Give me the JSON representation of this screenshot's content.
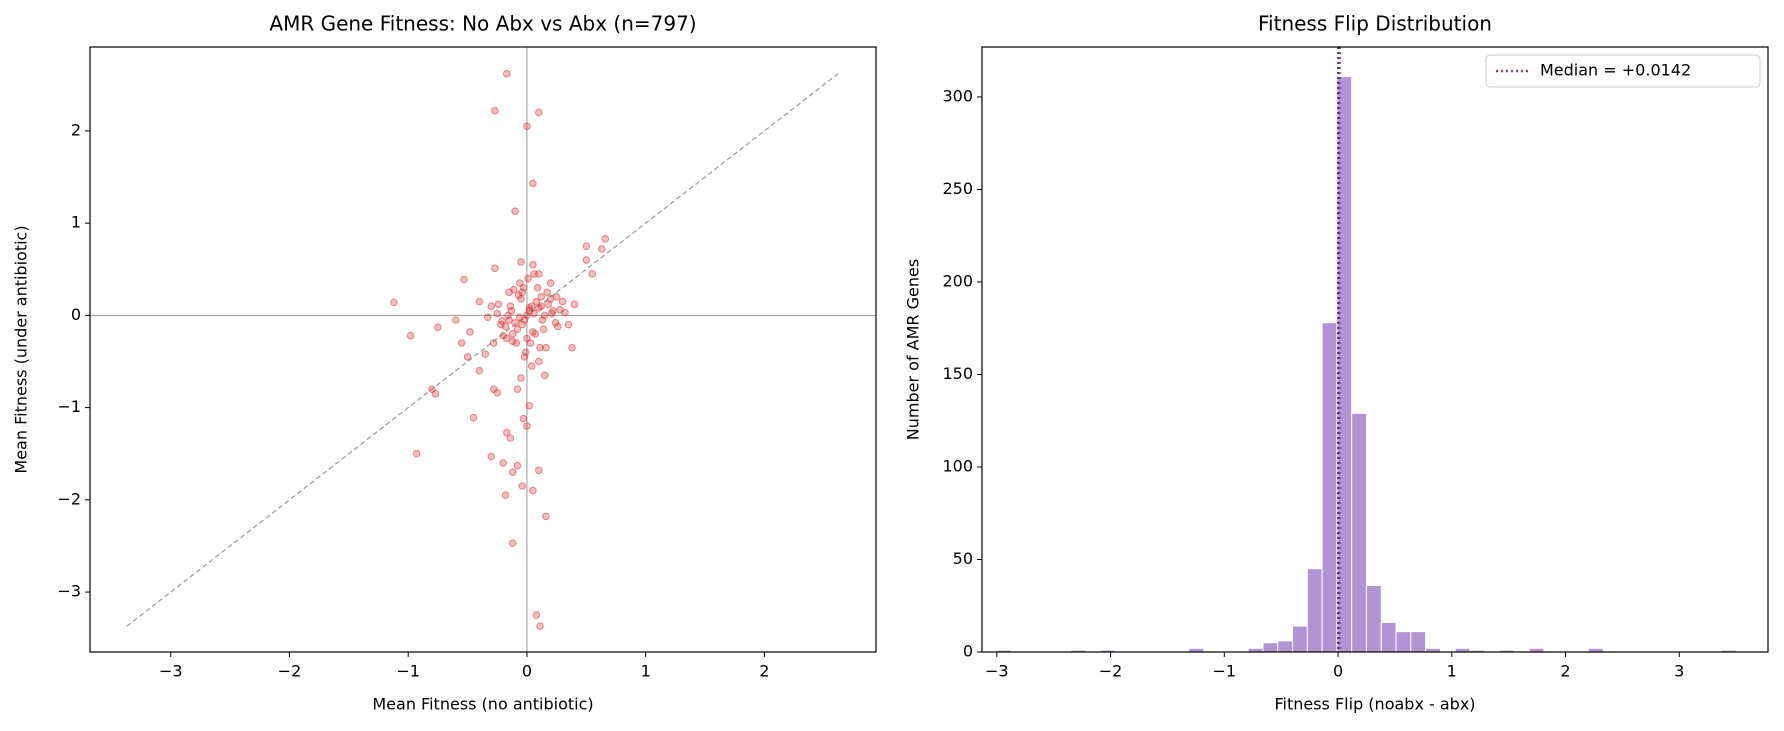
{
  "chart_data": [
    {
      "type": "scatter",
      "title": "AMR Gene Fitness: No Abx vs Abx (n=797)",
      "x_label": "Mean Fitness (no antibiotic)",
      "y_label": "Mean Fitness (under antibiotic)",
      "color": "#d62728",
      "zero_lines": true,
      "identity_line": [
        -3.37,
        2.62
      ],
      "xlim": [
        -3.68,
        2.94
      ],
      "ylim": [
        -3.65,
        2.91
      ],
      "xticks": [
        {
          "value": -3,
          "label": "−3"
        },
        {
          "value": -2,
          "label": "−2"
        },
        {
          "value": -1,
          "label": "−1"
        },
        0,
        1,
        2
      ],
      "yticks": [
        {
          "value": -3,
          "label": "−3"
        },
        {
          "value": -2,
          "label": "−2"
        },
        {
          "value": -1,
          "label": "−1"
        },
        0,
        1,
        2
      ],
      "x": [
        -0.17,
        -0.27,
        0.1,
        0.0,
        0.05,
        -0.1,
        -1.12,
        -0.98,
        -0.93,
        -0.75,
        -0.8,
        -0.77,
        -0.53,
        -0.45,
        -0.27,
        -0.3,
        -0.17,
        -0.14,
        -0.2,
        -0.18,
        -0.12,
        -0.08,
        -0.04,
        -0.12,
        0.1,
        0.05,
        0.16,
        0.08,
        0.11,
        0.0,
        -0.03,
        0.02,
        0.5,
        0.5,
        0.63,
        0.66,
        0.55,
        0.38,
        0.32,
        0.4,
        -0.55,
        -0.5,
        -0.48,
        -0.6,
        -0.4,
        -0.35,
        -0.28,
        -0.25,
        -0.08,
        -0.05,
        0.1,
        0.15,
        0.05,
        -0.05,
        0.1,
        0.2,
        -0.15,
        -0.3,
        -0.4,
        0.0,
        0.02,
        -0.02,
        0.04,
        -0.04,
        0.06,
        -0.06,
        0.08,
        -0.08,
        0.1,
        -0.1,
        0.12,
        -0.12,
        0.15,
        -0.15,
        0.18,
        -0.18,
        0.22,
        -0.22,
        0.25,
        -0.25,
        0.0,
        0.03,
        -0.03,
        0.07,
        -0.07,
        0.11,
        -0.11,
        0.14,
        -0.14,
        0.2,
        -0.2,
        0.28,
        -0.28,
        0.01,
        -0.01,
        0.05,
        -0.05,
        0.09,
        -0.09,
        0.13,
        -0.13,
        0.17,
        -0.17,
        0.24,
        -0.24,
        0.3,
        0.35,
        -0.33,
        0.02,
        -0.02,
        0.06,
        -0.06,
        0.16,
        -0.16,
        0.26,
        0.04,
        -0.04,
        0.12,
        -0.12,
        0.21,
        -0.21
      ],
      "y": [
        2.62,
        2.22,
        2.2,
        2.05,
        1.43,
        1.13,
        0.14,
        -0.22,
        -1.5,
        -0.13,
        -0.8,
        -0.85,
        0.39,
        -1.11,
        0.51,
        -1.53,
        -1.27,
        -1.33,
        -1.6,
        -1.95,
        -1.7,
        -1.63,
        -1.85,
        -2.47,
        -1.68,
        -1.9,
        -2.18,
        -3.25,
        -3.37,
        -1.2,
        -1.12,
        -0.98,
        0.75,
        0.6,
        0.72,
        0.83,
        0.45,
        -0.35,
        0.03,
        0.12,
        -0.3,
        -0.45,
        -0.18,
        -0.05,
        -0.6,
        -0.42,
        -0.8,
        -0.84,
        -0.8,
        -0.68,
        -0.5,
        -0.65,
        0.55,
        0.58,
        0.45,
        0.35,
        0.25,
        0.1,
        0.15,
        0.0,
        0.05,
        -0.05,
        0.1,
        -0.1,
        0.02,
        -0.02,
        0.15,
        -0.15,
        0.08,
        -0.08,
        0.2,
        -0.2,
        0.0,
        -0.05,
        0.12,
        -0.12,
        0.05,
        -0.1,
        0.2,
        0.02,
        -0.25,
        -0.3,
        0.3,
        -0.2,
        0.22,
        -0.35,
        0.28,
        -0.15,
        0.1,
        0.18,
        -0.22,
        0.06,
        -0.3,
        0.4,
        -0.4,
        -0.18,
        0.18,
        0.3,
        -0.3,
        -0.05,
        0.05,
        0.25,
        -0.25,
        -0.08,
        0.12,
        0.15,
        -0.1,
        -0.02,
        0.08,
        -0.45,
        0.45,
        0.35,
        -0.35,
        0.0,
        -0.12,
        -0.55,
        0.25,
        0.1,
        -0.28,
        0.02,
        -0.06
      ]
    },
    {
      "type": "histogram",
      "title": "Fitness Flip Distribution",
      "x_label": "Fitness Flip (noabx - abx)",
      "y_label": "Number of AMR Genes",
      "color": "#b294d4",
      "legend": "upper right",
      "reference_line": 0,
      "median": {
        "value": 0.0142,
        "label": "Median = +0.0142",
        "color": "#8e44ad"
      },
      "xlim": [
        -3.13,
        3.78
      ],
      "ylim": [
        0,
        327
      ],
      "xticks": [
        {
          "value": -3,
          "label": "−3"
        },
        {
          "value": -2,
          "label": "−2"
        },
        {
          "value": -1,
          "label": "−1"
        },
        0,
        1,
        2,
        3
      ],
      "yticks": [
        0,
        50,
        100,
        150,
        200,
        250,
        300
      ],
      "bins": [
        -3.0,
        -2.87,
        -2.74,
        -2.61,
        -2.48,
        -2.35,
        -2.22,
        -2.09,
        -1.96,
        -1.83,
        -1.7,
        -1.57,
        -1.44,
        -1.31,
        -1.18,
        -1.05,
        -0.92,
        -0.79,
        -0.66,
        -0.53,
        -0.4,
        -0.27,
        -0.14,
        -0.01,
        0.12,
        0.25,
        0.38,
        0.51,
        0.64,
        0.77,
        0.9,
        1.03,
        1.16,
        1.29,
        1.42,
        1.55,
        1.68,
        1.81,
        1.94,
        2.07,
        2.2,
        2.33,
        2.46,
        2.59,
        2.72,
        2.85,
        2.98,
        3.11,
        3.24,
        3.37,
        3.5
      ],
      "counts": [
        1,
        0,
        0,
        0,
        0,
        1,
        0,
        1,
        0,
        0,
        0,
        0,
        0,
        2,
        0,
        0,
        0,
        2,
        5,
        6,
        14,
        45,
        178,
        311,
        129,
        36,
        16,
        11,
        11,
        2,
        0,
        2,
        1,
        0,
        1,
        0,
        2,
        0,
        0,
        0,
        2,
        0,
        0,
        0,
        0,
        0,
        0,
        0,
        0,
        1
      ]
    }
  ]
}
